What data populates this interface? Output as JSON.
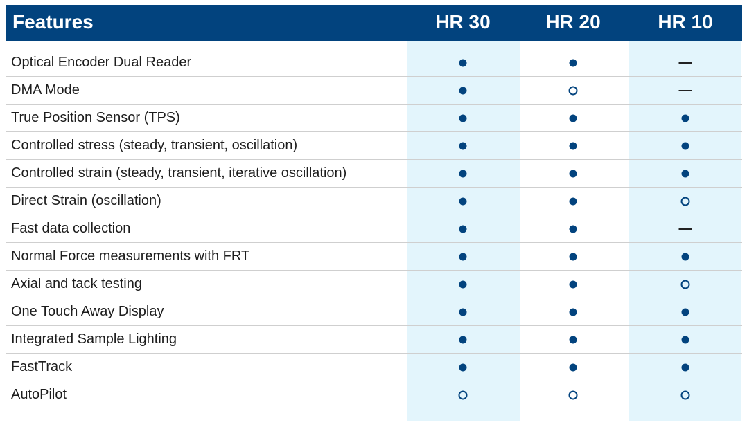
{
  "header": {
    "features_label": "Features",
    "columns": [
      "HR 30",
      "HR 20",
      "HR 10"
    ]
  },
  "legend_marks": {
    "full": "filled circle (included)",
    "open": "open circle (optional)",
    "none": "dash (not available)"
  },
  "colors": {
    "header_bg": "#02437e",
    "header_text": "#ffffff",
    "column_shade": "#e3f5fc",
    "mark": "#02437e"
  },
  "rows": [
    {
      "label": "Optical Encoder Dual Reader",
      "values": [
        "full",
        "full",
        "none"
      ]
    },
    {
      "label": "DMA Mode",
      "values": [
        "full",
        "open",
        "none"
      ]
    },
    {
      "label": "True Position Sensor (TPS)",
      "values": [
        "full",
        "full",
        "full"
      ]
    },
    {
      "label": "Controlled stress (steady, transient, oscillation)",
      "values": [
        "full",
        "full",
        "full"
      ]
    },
    {
      "label": "Controlled strain (steady, transient, iterative oscillation)",
      "values": [
        "full",
        "full",
        "full"
      ]
    },
    {
      "label": "Direct Strain (oscillation)",
      "values": [
        "full",
        "full",
        "open"
      ]
    },
    {
      "label": "Fast data collection",
      "values": [
        "full",
        "full",
        "none"
      ]
    },
    {
      "label": "Normal Force measurements with FRT",
      "values": [
        "full",
        "full",
        "full"
      ]
    },
    {
      "label": "Axial and tack testing",
      "values": [
        "full",
        "full",
        "open"
      ]
    },
    {
      "label": "One Touch Away Display",
      "values": [
        "full",
        "full",
        "full"
      ]
    },
    {
      "label": "Integrated Sample Lighting",
      "values": [
        "full",
        "full",
        "full"
      ]
    },
    {
      "label": "FastTrack",
      "values": [
        "full",
        "full",
        "full"
      ]
    },
    {
      "label": "AutoPilot",
      "values": [
        "open",
        "open",
        "open"
      ]
    }
  ]
}
